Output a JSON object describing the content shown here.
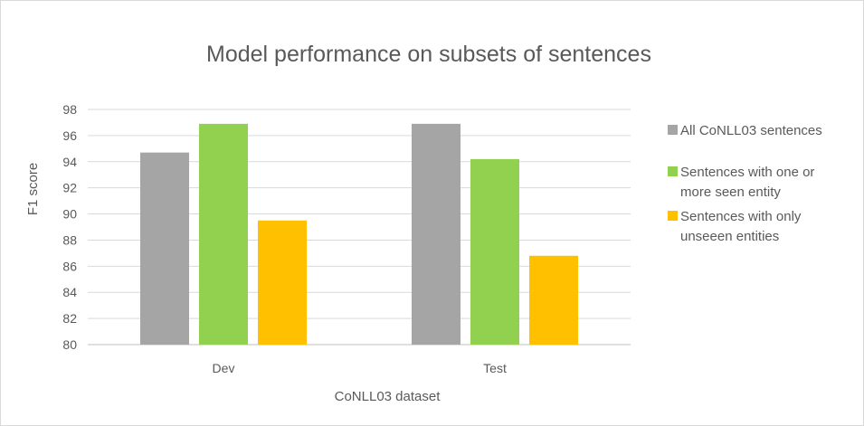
{
  "chart_data": {
    "type": "bar",
    "title": "Model performance on subsets of sentences",
    "xlabel": "CoNLL03 dataset",
    "ylabel": "F1 score",
    "categories": [
      "Dev",
      "Test"
    ],
    "ylim": [
      80,
      98
    ],
    "yticks": [
      80,
      82,
      84,
      86,
      88,
      90,
      92,
      94,
      96,
      98
    ],
    "grid": true,
    "legend_position": "right",
    "series": [
      {
        "name": "All CoNLL03 sentences",
        "legend_lines": [
          "All CoNLL03 sentences"
        ],
        "color": "#a5a5a5",
        "values": [
          94.7,
          96.9
        ]
      },
      {
        "name": "Sentences with one or more seen entity",
        "legend_lines": [
          "Sentences with one or",
          "more seen entity"
        ],
        "color": "#92d050",
        "values": [
          96.9,
          94.2
        ]
      },
      {
        "name": "Sentences with only unseeen entities",
        "legend_lines": [
          "Sentences with only",
          "unseeen entities"
        ],
        "color": "#ffc000",
        "values": [
          89.5,
          86.8
        ]
      }
    ]
  }
}
